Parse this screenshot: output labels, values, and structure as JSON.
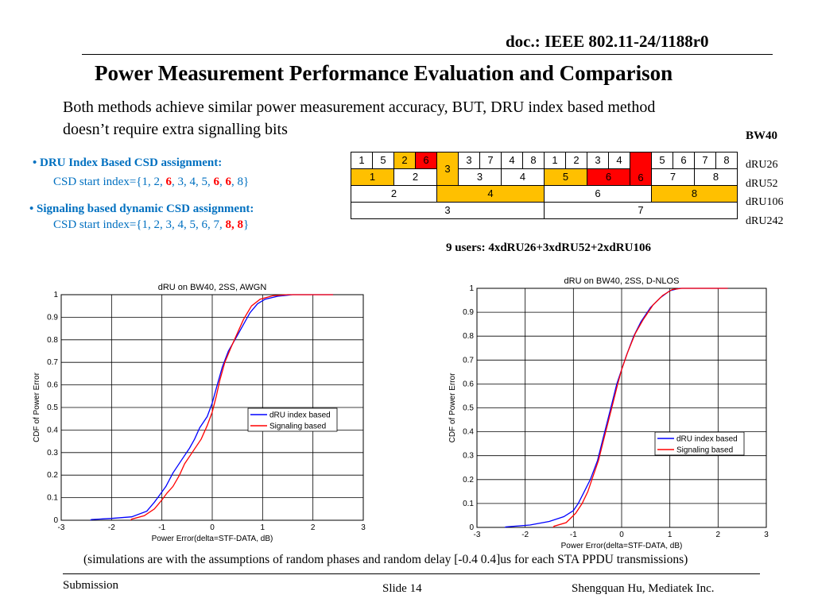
{
  "header": {
    "doc_id": "doc.: IEEE 802.11-24/1188r0",
    "title": "Power Measurement Performance Evaluation and Comparison",
    "subtitle": "Both methods achieve similar power measurement accuracy, BUT, DRU index based method doesn’t require extra signalling bits",
    "bw_label": "BW40"
  },
  "left_panel": {
    "dru_heading": "DRU Index Based CSD assignment:",
    "dru_line": {
      "prefix": "CSD start index={1, 2, ",
      "red1": "6",
      "mid": ", 3, 4, 5, ",
      "red2": "6",
      "sep": ", ",
      "red3": "6",
      "suffix": ", 8}"
    },
    "sig_heading": "Signaling based dynamic CSD assignment:",
    "sig_line": {
      "prefix": "CSD start index={1, 2, 3, 4, 5, 6, 7, ",
      "red": "8, 8",
      "suffix": "}"
    }
  },
  "ru_table": {
    "row1": [
      "1",
      "5",
      "2",
      "6",
      "3",
      "7",
      "4",
      "8",
      "1",
      "2",
      "3",
      "4",
      "5",
      "6",
      "7",
      "8"
    ],
    "row2": [
      "1",
      "2",
      "3",
      "3",
      "4",
      "5",
      "6",
      "6",
      "7",
      "8"
    ],
    "row3": [
      "2",
      "4",
      "6",
      "8"
    ],
    "row4": [
      "3",
      "7"
    ],
    "row_labels": [
      "dRU26",
      "dRU52",
      "dRU106",
      "dRU242"
    ],
    "users_note": "9 users:  4xdRU26+3xdRU52+2xdRU106"
  },
  "chart_data": [
    {
      "type": "line",
      "title": "dRU on BW40, 2SS, AWGN",
      "xlabel": "Power Error(delta=STF-DATA, dB)",
      "ylabel": "CDF of Power Error",
      "xlim": [
        -3,
        3
      ],
      "ylim": [
        0,
        1
      ],
      "xticks": [
        "-3",
        "-2",
        "-1",
        "0",
        "1",
        "2",
        "3"
      ],
      "yticks": [
        "0",
        "0.1",
        "0.2",
        "0.3",
        "0.4",
        "0.5",
        "0.6",
        "0.7",
        "0.8",
        "0.9",
        "1"
      ],
      "grid": true,
      "legend": "center-right",
      "series": [
        {
          "name": "dRU index based",
          "color": "#0000ff",
          "points": [
            [
              -2.42,
              0
            ],
            [
              -2.4,
              0.003
            ],
            [
              -2.0,
              0.008
            ],
            [
              -1.6,
              0.015
            ],
            [
              -1.3,
              0.04
            ],
            [
              -1.15,
              0.08
            ],
            [
              -1.05,
              0.11
            ],
            [
              -0.92,
              0.15
            ],
            [
              -0.78,
              0.21
            ],
            [
              -0.6,
              0.27
            ],
            [
              -0.45,
              0.32
            ],
            [
              -0.35,
              0.36
            ],
            [
              -0.25,
              0.41
            ],
            [
              -0.1,
              0.46
            ],
            [
              0.0,
              0.52
            ],
            [
              0.1,
              0.6
            ],
            [
              0.2,
              0.68
            ],
            [
              0.32,
              0.75
            ],
            [
              0.45,
              0.8
            ],
            [
              0.6,
              0.86
            ],
            [
              0.75,
              0.92
            ],
            [
              0.9,
              0.96
            ],
            [
              1.05,
              0.98
            ],
            [
              1.3,
              0.993
            ],
            [
              1.6,
              1.0
            ],
            [
              2.4,
              1.0
            ]
          ]
        },
        {
          "name": "Signaling based",
          "color": "#ff0000",
          "points": [
            [
              -1.62,
              0
            ],
            [
              -1.6,
              0.005
            ],
            [
              -1.35,
              0.02
            ],
            [
              -1.15,
              0.05
            ],
            [
              -1.0,
              0.09
            ],
            [
              -0.9,
              0.12
            ],
            [
              -0.78,
              0.15
            ],
            [
              -0.65,
              0.2
            ],
            [
              -0.55,
              0.25
            ],
            [
              -0.4,
              0.3
            ],
            [
              -0.22,
              0.36
            ],
            [
              -0.1,
              0.42
            ],
            [
              0.0,
              0.48
            ],
            [
              0.08,
              0.55
            ],
            [
              0.15,
              0.62
            ],
            [
              0.25,
              0.7
            ],
            [
              0.38,
              0.77
            ],
            [
              0.5,
              0.83
            ],
            [
              0.62,
              0.89
            ],
            [
              0.78,
              0.95
            ],
            [
              0.95,
              0.98
            ],
            [
              1.2,
              0.995
            ],
            [
              1.5,
              1.0
            ],
            [
              2.4,
              1.0
            ]
          ]
        }
      ]
    },
    {
      "type": "line",
      "title": "dRU on BW40, 2SS, D-NLOS",
      "xlabel": "Power Error(delta=STF-DATA, dB)",
      "ylabel": "CDF of Power Error",
      "xlim": [
        -3,
        3
      ],
      "ylim": [
        0,
        1
      ],
      "xticks": [
        "-3",
        "-2",
        "-1",
        "0",
        "1",
        "2",
        "3"
      ],
      "yticks": [
        "0",
        "0.1",
        "0.2",
        "0.3",
        "0.4",
        "0.5",
        "0.6",
        "0.7",
        "0.8",
        "0.9",
        "1"
      ],
      "grid": true,
      "legend": "center-right",
      "series": [
        {
          "name": "dRU index based",
          "color": "#0000ff",
          "points": [
            [
              -2.42,
              0
            ],
            [
              -2.4,
              0.002
            ],
            [
              -1.9,
              0.01
            ],
            [
              -1.5,
              0.025
            ],
            [
              -1.2,
              0.045
            ],
            [
              -1.0,
              0.07
            ],
            [
              -0.9,
              0.1
            ],
            [
              -0.8,
              0.14
            ],
            [
              -0.65,
              0.2
            ],
            [
              -0.5,
              0.28
            ],
            [
              -0.4,
              0.36
            ],
            [
              -0.3,
              0.44
            ],
            [
              -0.2,
              0.52
            ],
            [
              -0.1,
              0.6
            ],
            [
              0.0,
              0.66
            ],
            [
              0.1,
              0.72
            ],
            [
              0.25,
              0.8
            ],
            [
              0.4,
              0.86
            ],
            [
              0.6,
              0.92
            ],
            [
              0.8,
              0.96
            ],
            [
              1.0,
              0.99
            ],
            [
              1.2,
              1.0
            ],
            [
              2.2,
              1.0
            ]
          ]
        },
        {
          "name": "Signaling based",
          "color": "#ff0000",
          "points": [
            [
              -1.42,
              0
            ],
            [
              -1.4,
              0.005
            ],
            [
              -1.15,
              0.02
            ],
            [
              -0.95,
              0.06
            ],
            [
              -0.82,
              0.1
            ],
            [
              -0.7,
              0.15
            ],
            [
              -0.6,
              0.21
            ],
            [
              -0.48,
              0.28
            ],
            [
              -0.38,
              0.36
            ],
            [
              -0.28,
              0.44
            ],
            [
              -0.18,
              0.52
            ],
            [
              -0.08,
              0.6
            ],
            [
              0.0,
              0.66
            ],
            [
              0.12,
              0.73
            ],
            [
              0.28,
              0.81
            ],
            [
              0.45,
              0.87
            ],
            [
              0.65,
              0.93
            ],
            [
              0.85,
              0.97
            ],
            [
              1.05,
              0.995
            ],
            [
              1.25,
              1.0
            ],
            [
              2.2,
              1.0
            ]
          ]
        }
      ]
    }
  ],
  "notes": {
    "simulation": "(simulations are with the assumptions of  random phases and random delay [-0.4 0.4]us for each STA PPDU transmissions)"
  },
  "footer": {
    "left": "Submission",
    "center": "Slide 14",
    "right": "Shengquan Hu, Mediatek Inc."
  }
}
